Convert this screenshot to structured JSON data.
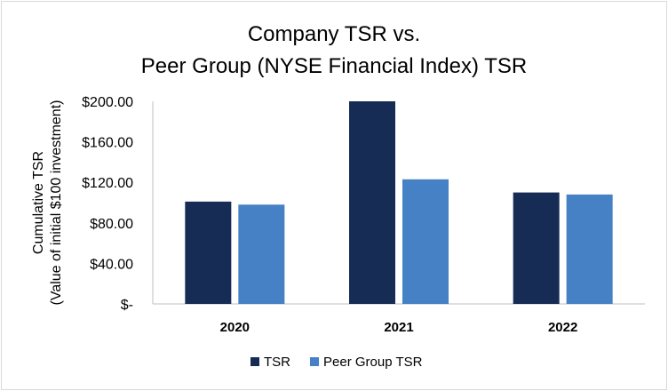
{
  "chart_data": {
    "type": "bar",
    "title_lines": [
      "Company TSR vs.",
      "Peer Group (NYSE Financial Index) TSR"
    ],
    "ylabel_lines": [
      "Cumulative TSR",
      "(Value of initial $100 investment)"
    ],
    "xlabel": "",
    "categories": [
      "2020",
      "2021",
      "2022"
    ],
    "series": [
      {
        "name": "TSR",
        "color": "#172c54",
        "values": [
          101,
          200,
          110
        ]
      },
      {
        "name": "Peer Group TSR",
        "color": "#4581c4",
        "values": [
          98,
          123,
          108
        ]
      }
    ],
    "ylim": [
      0,
      200
    ],
    "yticks": [
      0,
      40,
      80,
      120,
      160,
      200
    ],
    "ytick_labels": [
      "$-",
      "$40.00",
      "$80.00",
      "$120.00",
      "$160.00",
      "$200.00"
    ],
    "grid": false,
    "legend_position": "bottom"
  }
}
